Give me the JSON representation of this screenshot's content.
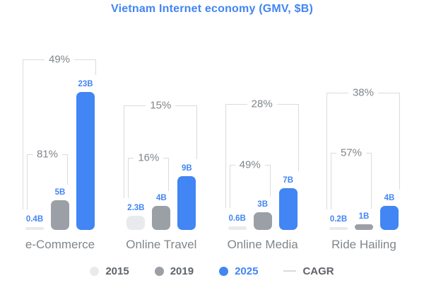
{
  "title": "Vietnam Internet economy (GMV, $B)",
  "chart_data": {
    "type": "bar",
    "title": "Vietnam Internet economy (GMV, $B)",
    "unit": "$B GMV",
    "categories": [
      "e-Commerce",
      "Online Travel",
      "Online Media",
      "Ride Hailing"
    ],
    "series": [
      {
        "name": "2015",
        "color": "#E8EAED",
        "values": [
          0.4,
          2.3,
          0.6,
          0.2
        ],
        "labels": [
          "0.4B",
          "2.3B",
          "0.6B",
          "0.2B"
        ]
      },
      {
        "name": "2019",
        "color": "#9AA0A6",
        "values": [
          5,
          4,
          3,
          1
        ],
        "labels": [
          "5B",
          "4B",
          "3B",
          "1B"
        ]
      },
      {
        "name": "2025",
        "color": "#4285F4",
        "values": [
          23,
          9,
          7,
          4
        ],
        "labels": [
          "23B",
          "9B",
          "7B",
          "4B"
        ]
      }
    ],
    "cagr": {
      "name": "CAGR",
      "full_period": {
        "span": "2015-2025",
        "values": [
          "49%",
          "15%",
          "28%",
          "38%"
        ]
      },
      "recent": {
        "span": "2015-2019",
        "values": [
          "81%",
          "16%",
          "49%",
          "57%"
        ]
      }
    },
    "legend_position": "bottom",
    "grid": false,
    "value_labels_shown": true
  },
  "legend": {
    "items": [
      {
        "label": "2015",
        "marker": "dot",
        "marker_color": "#E8EAED",
        "text_color": "#5F6368"
      },
      {
        "label": "2019",
        "marker": "dot",
        "marker_color": "#9AA0A6",
        "text_color": "#5F6368"
      },
      {
        "label": "2025",
        "marker": "dot",
        "marker_color": "#4285F4",
        "text_color": "#4285F4"
      },
      {
        "label": "CAGR",
        "marker": "line",
        "marker_color": "#D8DBDF",
        "text_color": "#5F6368"
      }
    ]
  },
  "colors": {
    "title": "#4285F4",
    "bar_2015": "#E8EAED",
    "bar_2019": "#9AA0A6",
    "bar_2025": "#4285F4",
    "value_label": "#4285F4",
    "bracket_line": "#D8DBDF",
    "pct_label": "#80868B",
    "category_label": "#80868B",
    "background": "#ffffff"
  }
}
